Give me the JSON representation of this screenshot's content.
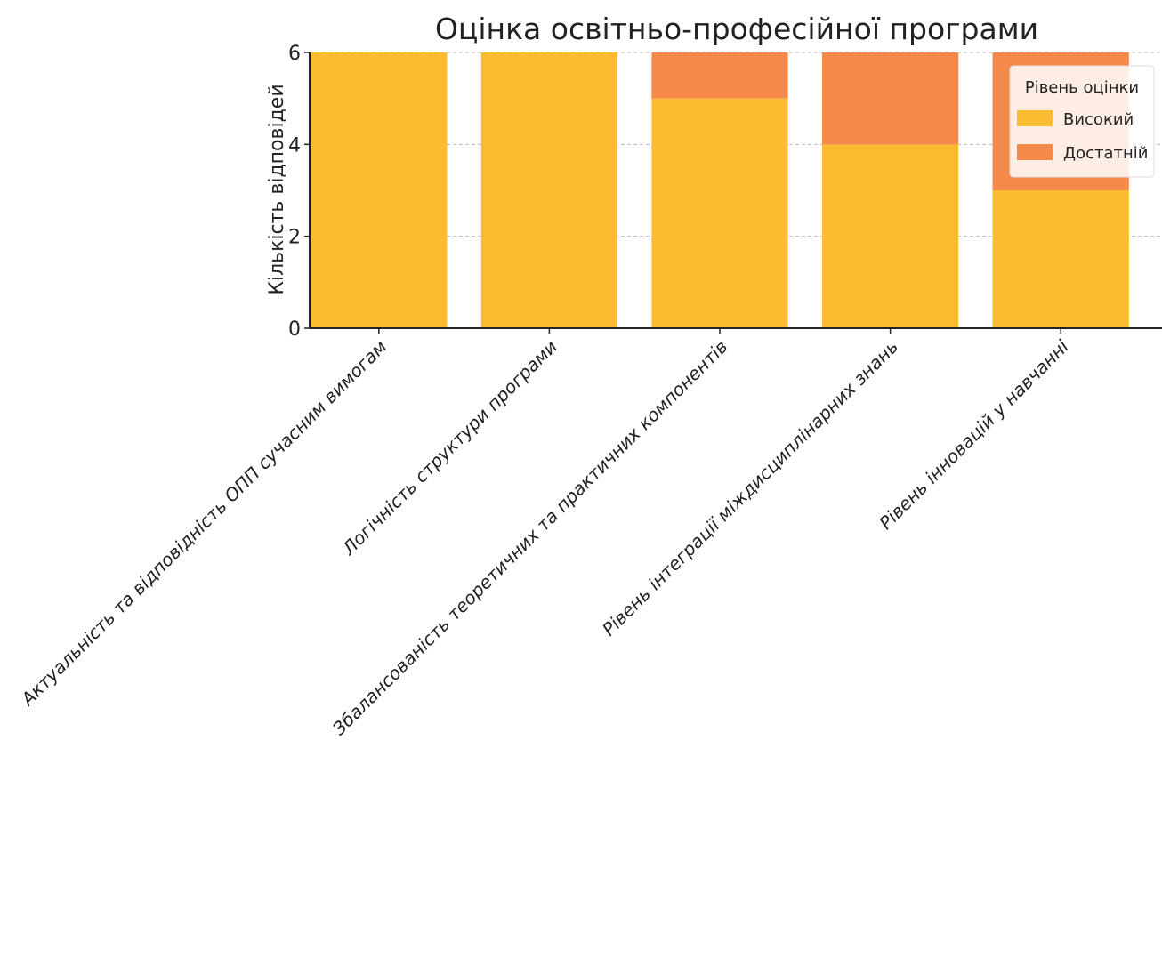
{
  "chart_data": {
    "type": "bar",
    "stacked": true,
    "title": "Оцінка освітньо-професійної програми",
    "xlabel": "",
    "ylabel": "Кількість відповідей",
    "ylim": [
      0,
      6
    ],
    "yticks": [
      0,
      2,
      4,
      6
    ],
    "grid": true,
    "categories": [
      "Актуальність та відповідність ОПП сучасним вимогам",
      "Логічність структури програми",
      "Збалансованість теоретичних та практичних компонентів",
      "Рівень інтеграції міждисциплінарних знань",
      "Рівень інновацій у навчанні"
    ],
    "series": [
      {
        "name": "Високий",
        "values": [
          6,
          6,
          5,
          4,
          3
        ],
        "color": "#fbbc32"
      },
      {
        "name": "Достатній",
        "values": [
          0,
          0,
          1,
          2,
          3
        ],
        "color": "#f5894a"
      }
    ],
    "legend": {
      "title": "Рівень оцінки",
      "placement": "top-right"
    }
  }
}
